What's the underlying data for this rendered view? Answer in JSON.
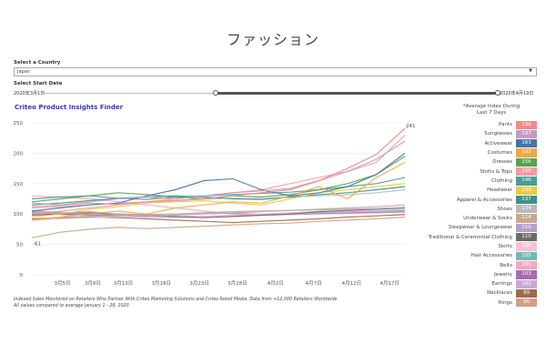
{
  "page": {
    "title": "ファッション"
  },
  "filters": {
    "country_label": "Select a Country",
    "country_value": "Japan",
    "start_label": "Select Start Date",
    "start_date": "2020年3月1日",
    "end_date": "2020年4月19日"
  },
  "chart": {
    "title": "Criteo Product Insights Finder"
  },
  "legend": {
    "title_line1": "*Average Index During",
    "title_line2": "Last 7 Days",
    "items": [
      {
        "name": "Pants",
        "value": "198",
        "color": "#f08a8a"
      },
      {
        "name": "Sunglasses",
        "value": "197",
        "color": "#c49ac7"
      },
      {
        "name": "Activewear",
        "value": "163",
        "color": "#4a73a8"
      },
      {
        "name": "Costumes",
        "value": "162",
        "color": "#f0a846"
      },
      {
        "name": "Dresses",
        "value": "156",
        "color": "#59a14f"
      },
      {
        "name": "Shirts & Tops",
        "value": "150",
        "color": "#f59ca0"
      },
      {
        "name": "Clothing",
        "value": "146",
        "color": "#4e9a95"
      },
      {
        "name": "Headwear",
        "value": "139",
        "color": "#edc948"
      },
      {
        "name": "Apparel & Accessories",
        "value": "137",
        "color": "#3e9088"
      },
      {
        "name": "Shoes",
        "value": "134",
        "color": "#b9b9b9"
      },
      {
        "name": "Underwear & Socks",
        "value": "114",
        "color": "#c7a992"
      },
      {
        "name": "Sleepwear & Loungewear",
        "value": "110",
        "color": "#b7a0c8"
      },
      {
        "name": "Traditional & Ceremonial Clothing",
        "value": "110",
        "color": "#6a6a6a"
      },
      {
        "name": "Skirts",
        "value": "106",
        "color": "#f7c1d4"
      },
      {
        "name": "Hair Accessories",
        "value": "105",
        "color": "#76b7b2"
      },
      {
        "name": "Belts",
        "value": "105",
        "color": "#f2a9c0"
      },
      {
        "name": "Jewelry",
        "value": "103",
        "color": "#a86cae"
      },
      {
        "name": "Earrings",
        "value": "102",
        "color": "#c8a8d6"
      },
      {
        "name": "Necklaces",
        "value": "99",
        "color": "#9c6b4e"
      },
      {
        "name": "Rings",
        "value": "95",
        "color": "#d0a088"
      }
    ]
  },
  "chart_data": {
    "type": "line",
    "title": "Criteo Product Insights Finder",
    "xlabel": "",
    "ylabel": "",
    "ylim": [
      0,
      250
    ],
    "yticks": [
      0,
      50,
      100,
      150,
      200,
      250
    ],
    "x_tick_labels": [
      "3月5日",
      "3月8日",
      "3月13日",
      "3月18日",
      "3月23日",
      "3月28日",
      "4月2日",
      "4月7日",
      "4月12日",
      "4月17日"
    ],
    "x_tick_days": [
      4,
      8,
      12,
      17,
      22,
      27,
      32,
      37,
      42,
      47
    ],
    "x_range": [
      0,
      49
    ],
    "annotations": [
      {
        "text": "241",
        "day": 49,
        "value": 241
      },
      {
        "text": "61",
        "day": 0,
        "value": 61
      }
    ],
    "series": [
      {
        "name": "Pants",
        "color": "#f08a8a",
        "values": [
          112,
          114,
          118,
          116,
          120,
          122,
          125,
          130,
          135,
          140,
          155,
          175,
          198,
          241
        ]
      },
      {
        "name": "Sunglasses",
        "color": "#c49ac7",
        "values": [
          118,
          115,
          120,
          125,
          128,
          125,
          130,
          135,
          138,
          142,
          155,
          170,
          190,
          220
        ]
      },
      {
        "name": "Activewear",
        "color": "#4a73a8",
        "values": [
          105,
          110,
          115,
          118,
          130,
          140,
          155,
          158,
          140,
          130,
          135,
          145,
          165,
          200
        ]
      },
      {
        "name": "Costumes",
        "color": "#f0a846",
        "values": [
          90,
          95,
          100,
          105,
          100,
          110,
          115,
          120,
          118,
          130,
          145,
          125,
          160,
          185
        ]
      },
      {
        "name": "Dresses",
        "color": "#59a14f",
        "values": [
          120,
          125,
          130,
          135,
          132,
          128,
          125,
          130,
          128,
          132,
          140,
          150,
          165,
          195
        ]
      },
      {
        "name": "Shirts & Tops",
        "color": "#f59ca0",
        "values": [
          100,
          105,
          110,
          115,
          120,
          125,
          130,
          135,
          140,
          150,
          160,
          170,
          185,
          230
        ]
      },
      {
        "name": "Clothing",
        "color": "#4e9a95",
        "values": [
          125,
          128,
          130,
          126,
          124,
          128,
          130,
          132,
          134,
          136,
          140,
          145,
          150,
          160
        ]
      },
      {
        "name": "Headwear",
        "color": "#edc948",
        "values": [
          95,
          100,
          108,
          112,
          118,
          120,
          122,
          118,
          115,
          125,
          135,
          140,
          145,
          150
        ]
      },
      {
        "name": "Apparel & Accessories",
        "color": "#3e9088",
        "values": [
          115,
          118,
          122,
          126,
          128,
          130,
          128,
          125,
          124,
          128,
          132,
          135,
          140,
          145
        ]
      },
      {
        "name": "Shoes",
        "color": "#b9b9b9",
        "values": [
          110,
          112,
          115,
          118,
          120,
          122,
          125,
          126,
          125,
          128,
          130,
          132,
          135,
          140
        ]
      },
      {
        "name": "Underwear & Socks",
        "color": "#c7a992",
        "values": [
          100,
          102,
          104,
          100,
          98,
          100,
          102,
          104,
          105,
          106,
          108,
          110,
          112,
          115
        ]
      },
      {
        "name": "Sleepwear & Loungewear",
        "color": "#b7a0c8",
        "values": [
          104,
          102,
          100,
          98,
          96,
          98,
          100,
          102,
          104,
          106,
          107,
          108,
          109,
          111
        ]
      },
      {
        "name": "Traditional & Ceremonial Clothing",
        "color": "#6a6a6a",
        "values": [
          98,
          100,
          102,
          100,
          98,
          96,
          94,
          96,
          98,
          100,
          104,
          106,
          108,
          110
        ]
      },
      {
        "name": "Skirts",
        "color": "#f7c1d4",
        "values": [
          90,
          92,
          94,
          96,
          95,
          94,
          96,
          98,
          100,
          102,
          104,
          105,
          106,
          108
        ]
      },
      {
        "name": "Hair Accessories",
        "color": "#76b7b2",
        "values": [
          105,
          103,
          101,
          100,
          99,
          100,
          102,
          101,
          100,
          102,
          103,
          104,
          105,
          106
        ]
      },
      {
        "name": "Belts",
        "color": "#f2a9c0",
        "values": [
          130,
          128,
          125,
          120,
          115,
          110,
          105,
          100,
          98,
          100,
          102,
          103,
          104,
          105
        ]
      },
      {
        "name": "Jewelry",
        "color": "#a86cae",
        "values": [
          102,
          100,
          98,
          97,
          96,
          95,
          96,
          98,
          99,
          100,
          101,
          102,
          103,
          104
        ]
      },
      {
        "name": "Earrings",
        "color": "#c8a8d6",
        "values": [
          100,
          99,
          97,
          96,
          95,
          94,
          95,
          96,
          98,
          99,
          100,
          101,
          102,
          103
        ]
      },
      {
        "name": "Necklaces",
        "color": "#9c6b4e",
        "values": [
          92,
          94,
          95,
          94,
          92,
          90,
          88,
          86,
          88,
          90,
          92,
          95,
          97,
          99
        ]
      },
      {
        "name": "Rings",
        "color": "#d0a088",
        "values": [
          61,
          70,
          75,
          78,
          76,
          78,
          80,
          82,
          84,
          85,
          88,
          90,
          92,
          95
        ]
      }
    ]
  },
  "footnote": {
    "line1": "Indexed Sales Monitored on Retailers Who Partner With Criteo Marketing Solutions and Criteo Retail Media. Data from +12,000 Retailers Worldwide",
    "line2": "All values compared to average January 1 - 28, 2020"
  }
}
